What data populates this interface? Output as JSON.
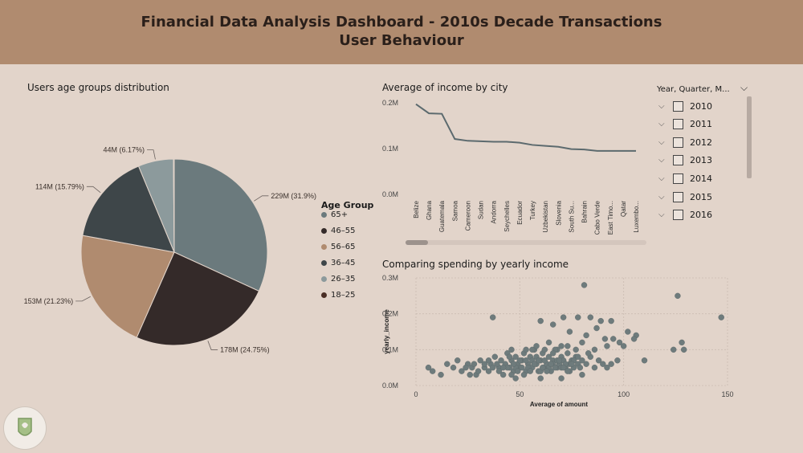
{
  "header": {
    "title_line1": "Financial Data Analysis Dashboard - 2010s Decade Transactions",
    "title_line2": "User Behaviour"
  },
  "colors": {
    "header_bg": "#b08b6f",
    "page_bg": "#e2d4ca",
    "line_color": "#5c6a6e",
    "scatter_point": "#6e7b7c"
  },
  "pie": {
    "title": "Users age groups distribution",
    "legend_title": "Age Group"
  },
  "line": {
    "title": "Average of income by city"
  },
  "scatter": {
    "title": "Comparing spending by yearly income"
  },
  "slicer": {
    "header": "Year, Quarter, M...",
    "items": [
      "2010",
      "2011",
      "2012",
      "2013",
      "2014",
      "2015",
      "2016"
    ]
  },
  "chart_data": [
    {
      "type": "pie",
      "title": "Users age groups distribution",
      "legend": {
        "title": "Age Group",
        "placement": "right"
      },
      "slices": [
        {
          "label": "65+",
          "value": 229,
          "display": "229M (31.9%)",
          "color": "#6b7a7d"
        },
        {
          "label": "46–55",
          "value": 178,
          "display": "178M (24.75%)",
          "color": "#342a29"
        },
        {
          "label": "56–65",
          "value": 153,
          "display": "153M (21.23%)",
          "color": "#b08b6f"
        },
        {
          "label": "36–45",
          "value": 114,
          "display": "114M (15.79%)",
          "color": "#3e4649"
        },
        {
          "label": "26–35",
          "value": 44,
          "display": "44M (6.17%)",
          "color": "#8c9a9c"
        },
        {
          "label": "18–25",
          "value": 1,
          "display": "",
          "color": "#4a2e25"
        }
      ]
    },
    {
      "type": "line",
      "title": "Average of income by city",
      "categories": [
        "Belize",
        "Ghana",
        "Guatemala",
        "Samoa",
        "Cameroon",
        "Sudan",
        "Andorra",
        "Seychelles",
        "Ecuador",
        "Turkey",
        "Uzbekistan",
        "Slovenia",
        "South Su...",
        "Bahrain",
        "Cabo Verde",
        "East Timo...",
        "Qatar",
        "Luxembo..."
      ],
      "values": [
        0.197,
        0.177,
        0.176,
        0.121,
        0.117,
        0.116,
        0.115,
        0.115,
        0.113,
        0.108,
        0.106,
        0.104,
        0.099,
        0.098,
        0.095,
        0.095,
        0.095,
        0.095
      ],
      "yticks": [
        "0.2M",
        "0.1M",
        "0.0M"
      ],
      "ylim": [
        0,
        0.2
      ],
      "grid": false
    },
    {
      "type": "scatter",
      "title": "Comparing spending by yearly income",
      "xlabel": "Average of amount",
      "ylabel": "yearly_income",
      "xlim": [
        0,
        150
      ],
      "ylim": [
        0,
        0.3
      ],
      "xticks": [
        "0",
        "50",
        "100",
        "150"
      ],
      "yticks": [
        "0.3M",
        "0.2M",
        "0.1M",
        "0.0M"
      ],
      "grid": true,
      "points": [
        [
          81,
          0.28
        ],
        [
          126,
          0.25
        ],
        [
          147,
          0.19
        ],
        [
          37,
          0.19
        ],
        [
          71,
          0.19
        ],
        [
          78,
          0.19
        ],
        [
          84,
          0.19
        ],
        [
          60,
          0.18
        ],
        [
          66,
          0.17
        ],
        [
          89,
          0.18
        ],
        [
          94,
          0.18
        ],
        [
          87,
          0.16
        ],
        [
          102,
          0.15
        ],
        [
          95,
          0.13
        ],
        [
          106,
          0.14
        ],
        [
          105,
          0.13
        ],
        [
          128,
          0.12
        ],
        [
          124,
          0.1
        ],
        [
          129,
          0.1
        ],
        [
          110,
          0.07
        ],
        [
          82,
          0.14
        ],
        [
          74,
          0.15
        ],
        [
          91,
          0.13
        ],
        [
          98,
          0.12
        ],
        [
          80,
          0.12
        ],
        [
          73,
          0.11
        ],
        [
          86,
          0.1
        ],
        [
          92,
          0.11
        ],
        [
          100,
          0.11
        ],
        [
          68,
          0.1
        ],
        [
          6,
          0.05
        ],
        [
          8,
          0.04
        ],
        [
          12,
          0.03
        ],
        [
          15,
          0.06
        ],
        [
          18,
          0.05
        ],
        [
          20,
          0.07
        ],
        [
          22,
          0.04
        ],
        [
          25,
          0.06
        ],
        [
          27,
          0.05
        ],
        [
          29,
          0.03
        ],
        [
          31,
          0.07
        ],
        [
          33,
          0.05
        ],
        [
          35,
          0.04
        ],
        [
          36,
          0.06
        ],
        [
          38,
          0.08
        ],
        [
          40,
          0.05
        ],
        [
          41,
          0.07
        ],
        [
          42,
          0.03
        ],
        [
          43,
          0.06
        ],
        [
          44,
          0.09
        ],
        [
          45,
          0.05
        ],
        [
          46,
          0.07
        ],
        [
          47,
          0.04
        ],
        [
          48,
          0.08
        ],
        [
          49,
          0.06
        ],
        [
          50,
          0.05
        ],
        [
          51,
          0.07
        ],
        [
          52,
          0.09
        ],
        [
          53,
          0.04
        ],
        [
          54,
          0.06
        ],
        [
          55,
          0.08
        ],
        [
          56,
          0.05
        ],
        [
          57,
          0.1
        ],
        [
          58,
          0.06
        ],
        [
          59,
          0.04
        ],
        [
          60,
          0.07
        ],
        [
          61,
          0.09
        ],
        [
          62,
          0.05
        ],
        [
          63,
          0.06
        ],
        [
          64,
          0.08
        ],
        [
          65,
          0.04
        ],
        [
          66,
          0.07
        ],
        [
          67,
          0.1
        ],
        [
          68,
          0.05
        ],
        [
          69,
          0.06
        ],
        [
          70,
          0.08
        ],
        [
          71,
          0.07
        ],
        [
          72,
          0.05
        ],
        [
          73,
          0.09
        ],
        [
          74,
          0.06
        ],
        [
          75,
          0.07
        ],
        [
          76,
          0.05
        ],
        [
          77,
          0.08
        ],
        [
          78,
          0.06
        ],
        [
          79,
          0.05
        ],
        [
          80,
          0.07
        ],
        [
          82,
          0.06
        ],
        [
          84,
          0.08
        ],
        [
          86,
          0.05
        ],
        [
          88,
          0.07
        ],
        [
          90,
          0.06
        ],
        [
          92,
          0.05
        ],
        [
          94,
          0.06
        ],
        [
          97,
          0.07
        ],
        [
          40,
          0.04
        ],
        [
          44,
          0.05
        ],
        [
          46,
          0.03
        ],
        [
          48,
          0.05
        ],
        [
          50,
          0.07
        ],
        [
          52,
          0.03
        ],
        [
          54,
          0.05
        ],
        [
          56,
          0.07
        ],
        [
          58,
          0.08
        ],
        [
          60,
          0.04
        ],
        [
          62,
          0.07
        ],
        [
          64,
          0.05
        ],
        [
          66,
          0.06
        ],
        [
          68,
          0.07
        ],
        [
          70,
          0.05
        ],
        [
          72,
          0.06
        ],
        [
          74,
          0.04
        ],
        [
          76,
          0.07
        ],
        [
          78,
          0.08
        ],
        [
          42,
          0.05
        ],
        [
          45,
          0.08
        ],
        [
          47,
          0.06
        ],
        [
          49,
          0.04
        ],
        [
          51,
          0.05
        ],
        [
          53,
          0.07
        ],
        [
          55,
          0.04
        ],
        [
          57,
          0.06
        ],
        [
          59,
          0.07
        ],
        [
          61,
          0.05
        ],
        [
          63,
          0.04
        ],
        [
          65,
          0.06
        ],
        [
          67,
          0.05
        ],
        [
          69,
          0.07
        ],
        [
          71,
          0.05
        ],
        [
          73,
          0.04
        ],
        [
          75,
          0.06
        ],
        [
          35,
          0.07
        ],
        [
          37,
          0.05
        ],
        [
          39,
          0.06
        ],
        [
          30,
          0.04
        ],
        [
          28,
          0.06
        ],
        [
          26,
          0.03
        ],
        [
          24,
          0.05
        ],
        [
          33,
          0.06
        ],
        [
          53,
          0.1
        ],
        [
          56,
          0.1
        ],
        [
          62,
          0.1
        ],
        [
          66,
          0.09
        ],
        [
          70,
          0.11
        ],
        [
          77,
          0.1
        ],
        [
          83,
          0.09
        ],
        [
          46,
          0.1
        ],
        [
          58,
          0.11
        ],
        [
          64,
          0.12
        ],
        [
          48,
          0.02
        ],
        [
          60,
          0.02
        ],
        [
          70,
          0.02
        ],
        [
          80,
          0.03
        ]
      ]
    }
  ]
}
